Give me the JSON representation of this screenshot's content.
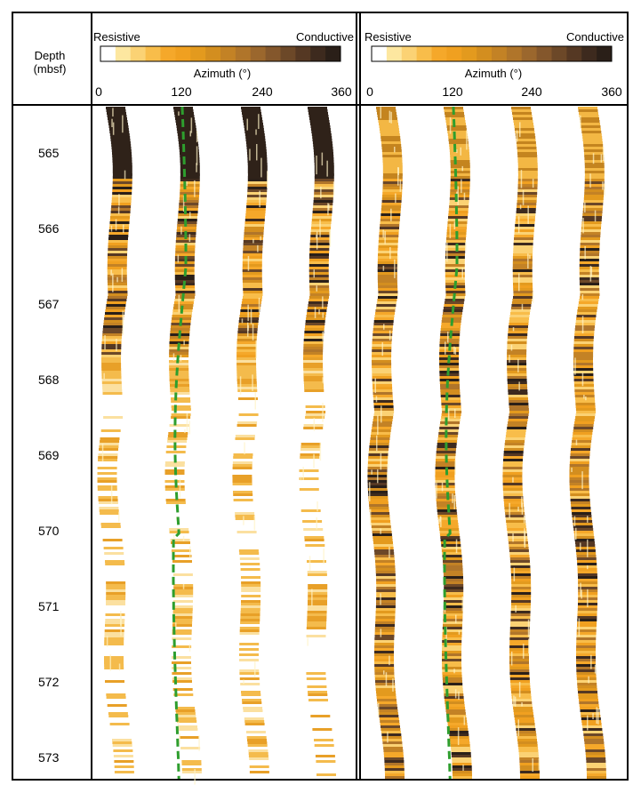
{
  "depth_header": {
    "line1": "Depth",
    "line2": "(mbsf)"
  },
  "depth_ticks": [
    "565",
    "566",
    "567",
    "568",
    "569",
    "570",
    "571",
    "572",
    "573"
  ],
  "panels": [
    {
      "scale_left_label": "Resistive",
      "scale_right_label": "Conductive",
      "azimuth_label": "Azimuth (°)",
      "azimuth_ticks": [
        "0",
        "120",
        "240",
        "360"
      ]
    },
    {
      "scale_left_label": "Resistive",
      "scale_right_label": "Conductive",
      "azimuth_label": "Azimuth (°)",
      "azimuth_ticks": [
        "0",
        "120",
        "240",
        "360"
      ]
    }
  ],
  "colors": {
    "scale": [
      "#ffffff",
      "#fde7a0",
      "#fbd274",
      "#f8bd4a",
      "#f5a82a",
      "#f0a020",
      "#e39a1e",
      "#d38e1f",
      "#c38225",
      "#b0752a",
      "#9b672d",
      "#84572c",
      "#6c4828",
      "#553823",
      "#3d2a1e",
      "#2a1f18"
    ],
    "trace_line": "#2e9e2e",
    "border": "#000000"
  }
}
